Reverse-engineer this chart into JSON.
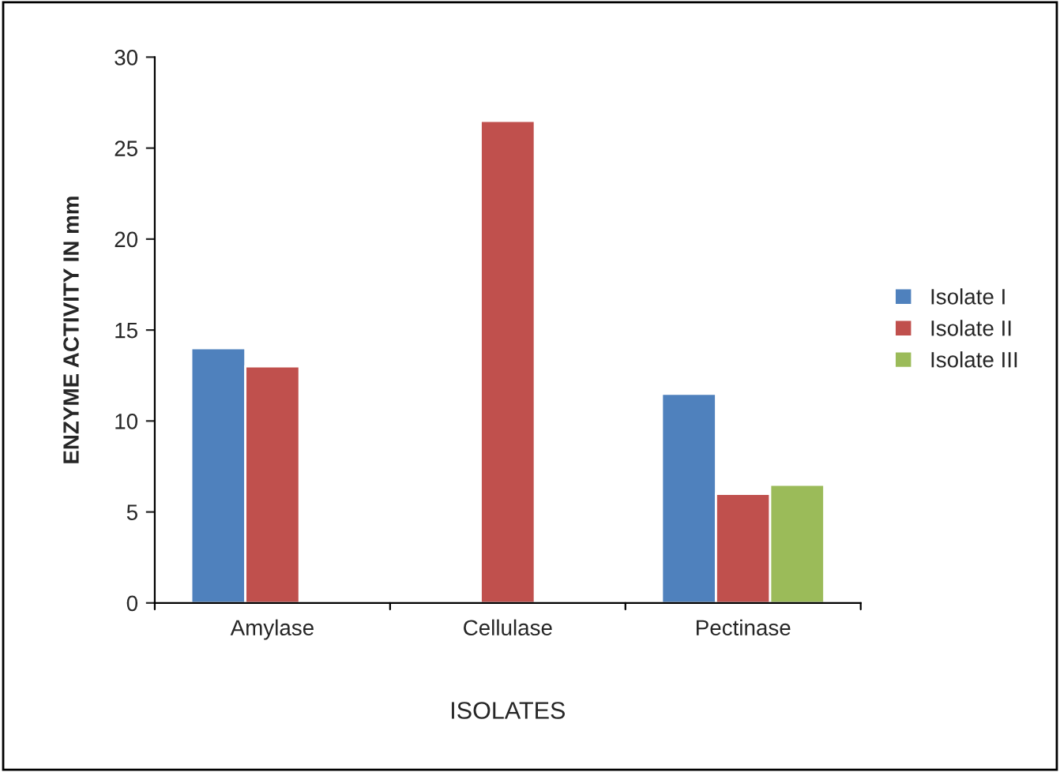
{
  "chart_data": {
    "type": "bar",
    "xlabel": "ISOLATES",
    "ylabel": "ENZYME ACTIVITY IN mm",
    "categories": [
      "Amylase",
      "Cellulase",
      "Pectinase"
    ],
    "series": [
      {
        "name": "Isolate I",
        "color": "#4f81bd",
        "values": [
          14,
          null,
          11.5
        ]
      },
      {
        "name": "Isolate II",
        "color": "#c0504d",
        "values": [
          13,
          26.5,
          6
        ]
      },
      {
        "name": "Isolate III",
        "color": "#9bbb59",
        "values": [
          null,
          null,
          6.5
        ]
      }
    ],
    "ylim": [
      0,
      30
    ],
    "yticks": [
      0,
      5,
      10,
      15,
      20,
      25,
      30
    ],
    "grid": false,
    "legend": "right"
  }
}
